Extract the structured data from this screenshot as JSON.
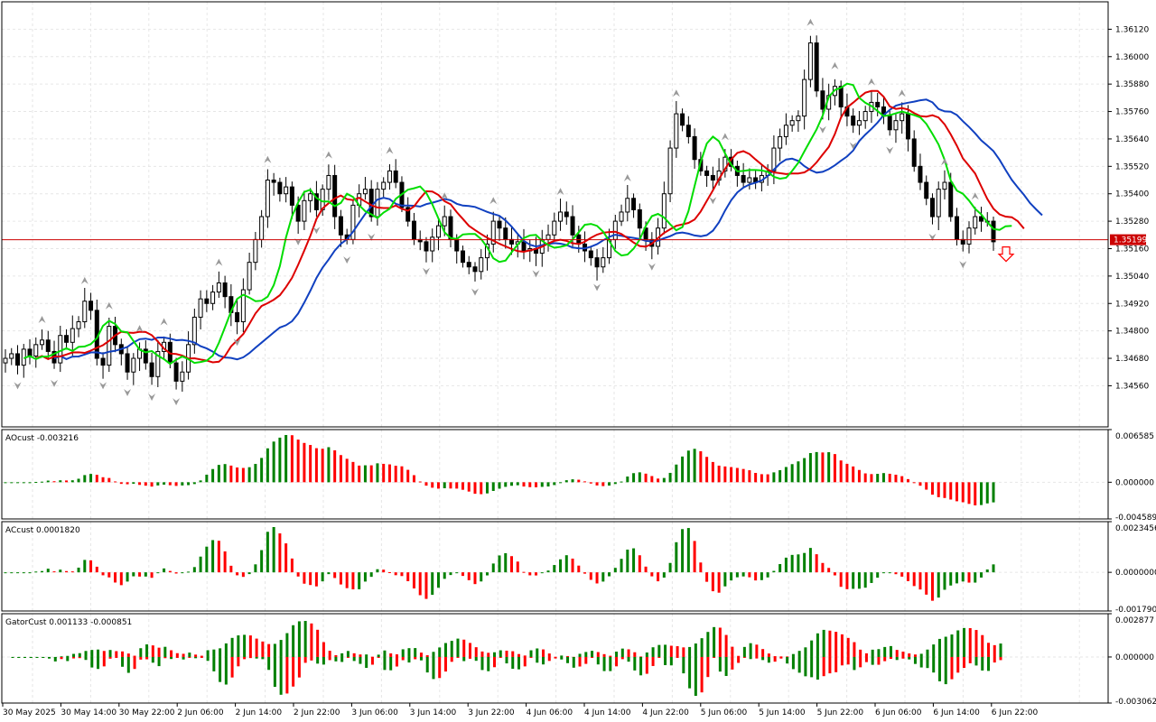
{
  "colors": {
    "background": "#ffffff",
    "grid": "#e6e6e6",
    "axis": "#000000",
    "bull_candle": "#ffffff",
    "bear_candle": "#000000",
    "ma_green": "#00dd00",
    "ma_red": "#dd0000",
    "ma_blue": "#1040c0",
    "hist_green": "#008000",
    "hist_red": "#ff0000",
    "price_line": "#cc0000",
    "fractal": "#999999",
    "sell_arrow": "#ff0000"
  },
  "price_panel": {
    "current_price_label": "1.35199",
    "current_price": 1.35199,
    "y_min": 1.3438,
    "y_max": 1.3624,
    "y_ticks": [
      "1.36120",
      "1.36000",
      "1.35880",
      "1.35760",
      "1.35640",
      "1.35520",
      "1.35400",
      "1.35280",
      "1.35160",
      "1.35040",
      "1.34920",
      "1.34800",
      "1.34680",
      "1.34560"
    ],
    "signal_icon": "down-arrow-icon"
  },
  "ao_panel": {
    "label": "AOcust -0.003216",
    "y_ticks": [
      "0.006585",
      "0.000000",
      "-0.004589"
    ],
    "y_max": 0.006585,
    "y_min": -0.004589
  },
  "ac_panel": {
    "label": "ACcust 0.0001820",
    "y_ticks": [
      "0.0023456",
      "0.0000000",
      "-0.0017900"
    ],
    "y_max": 0.0023456,
    "y_min": -0.00179
  },
  "gator_panel": {
    "label": "GatorCust 0.001133 -0.000851",
    "y_ticks": [
      "0.002877",
      "0.000000",
      "-0.003062"
    ],
    "y_max": 0.002877,
    "y_min": -0.003062
  },
  "time_axis": {
    "labels": [
      "30 May 2025",
      "30 May 14:00",
      "30 May 22:00",
      "2 Jun 06:00",
      "2 Jun 14:00",
      "2 Jun 22:00",
      "3 Jun 06:00",
      "3 Jun 14:00",
      "3 Jun 22:00",
      "4 Jun 06:00",
      "4 Jun 14:00",
      "4 Jun 22:00",
      "5 Jun 06:00",
      "5 Jun 14:00",
      "5 Jun 22:00",
      "6 Jun 06:00",
      "6 Jun 14:00",
      "6 Jun 22:00"
    ]
  },
  "chart_data": {
    "type": "candlestick",
    "ohlc_approx_close": [
      1.3468,
      1.347,
      1.3465,
      1.3472,
      1.3469,
      1.3474,
      1.3476,
      1.3471,
      1.3466,
      1.3478,
      1.3475,
      1.3481,
      1.3484,
      1.3493,
      1.3489,
      1.3468,
      1.3465,
      1.3482,
      1.3474,
      1.347,
      1.3462,
      1.3468,
      1.3472,
      1.3466,
      1.346,
      1.3471,
      1.3475,
      1.3466,
      1.3458,
      1.3462,
      1.3474,
      1.3486,
      1.3494,
      1.3492,
      1.3497,
      1.3501,
      1.3495,
      1.3488,
      1.3484,
      1.3498,
      1.351,
      1.352,
      1.353,
      1.3546,
      1.3545,
      1.354,
      1.3543,
      1.3535,
      1.3528,
      1.3537,
      1.354,
      1.3533,
      1.3542,
      1.3548,
      1.353,
      1.3522,
      1.352,
      1.3535,
      1.354,
      1.3542,
      1.353,
      1.3542,
      1.3545,
      1.355,
      1.3545,
      1.3534,
      1.3528,
      1.352,
      1.3519,
      1.3515,
      1.3521,
      1.3526,
      1.353,
      1.352,
      1.3515,
      1.351,
      1.3508,
      1.3506,
      1.3512,
      1.3518,
      1.3528,
      1.3525,
      1.352,
      1.3518,
      1.3519,
      1.3515,
      1.3516,
      1.3514,
      1.352,
      1.3522,
      1.3528,
      1.3532,
      1.353,
      1.3522,
      1.3518,
      1.3515,
      1.3512,
      1.3508,
      1.3512,
      1.352,
      1.3528,
      1.3532,
      1.3538,
      1.3533,
      1.3525,
      1.352,
      1.3517,
      1.3525,
      1.354,
      1.356,
      1.3575,
      1.357,
      1.3565,
      1.3555,
      1.355,
      1.3548,
      1.3546,
      1.355,
      1.3556,
      1.3552,
      1.3548,
      1.3545,
      1.3547,
      1.3545,
      1.3548,
      1.355,
      1.356,
      1.3565,
      1.357,
      1.3572,
      1.3574,
      1.359,
      1.3606,
      1.3585,
      1.3577,
      1.3583,
      1.3587,
      1.3578,
      1.3574,
      1.357,
      1.3572,
      1.3576,
      1.358,
      1.3578,
      1.3574,
      1.3568,
      1.3572,
      1.3575,
      1.3564,
      1.3552,
      1.3545,
      1.3538,
      1.353,
      1.3542,
      1.3545,
      1.353,
      1.352,
      1.3518,
      1.3525,
      1.353,
      1.3528,
      1.3528,
      1.3519
    ],
    "series": [
      {
        "name": "AOcust",
        "last": -0.003216
      },
      {
        "name": "ACcust",
        "last": 0.000182
      },
      {
        "name": "GatorCust upper",
        "last": 0.001133
      },
      {
        "name": "GatorCust lower",
        "last": -0.000851
      }
    ]
  }
}
